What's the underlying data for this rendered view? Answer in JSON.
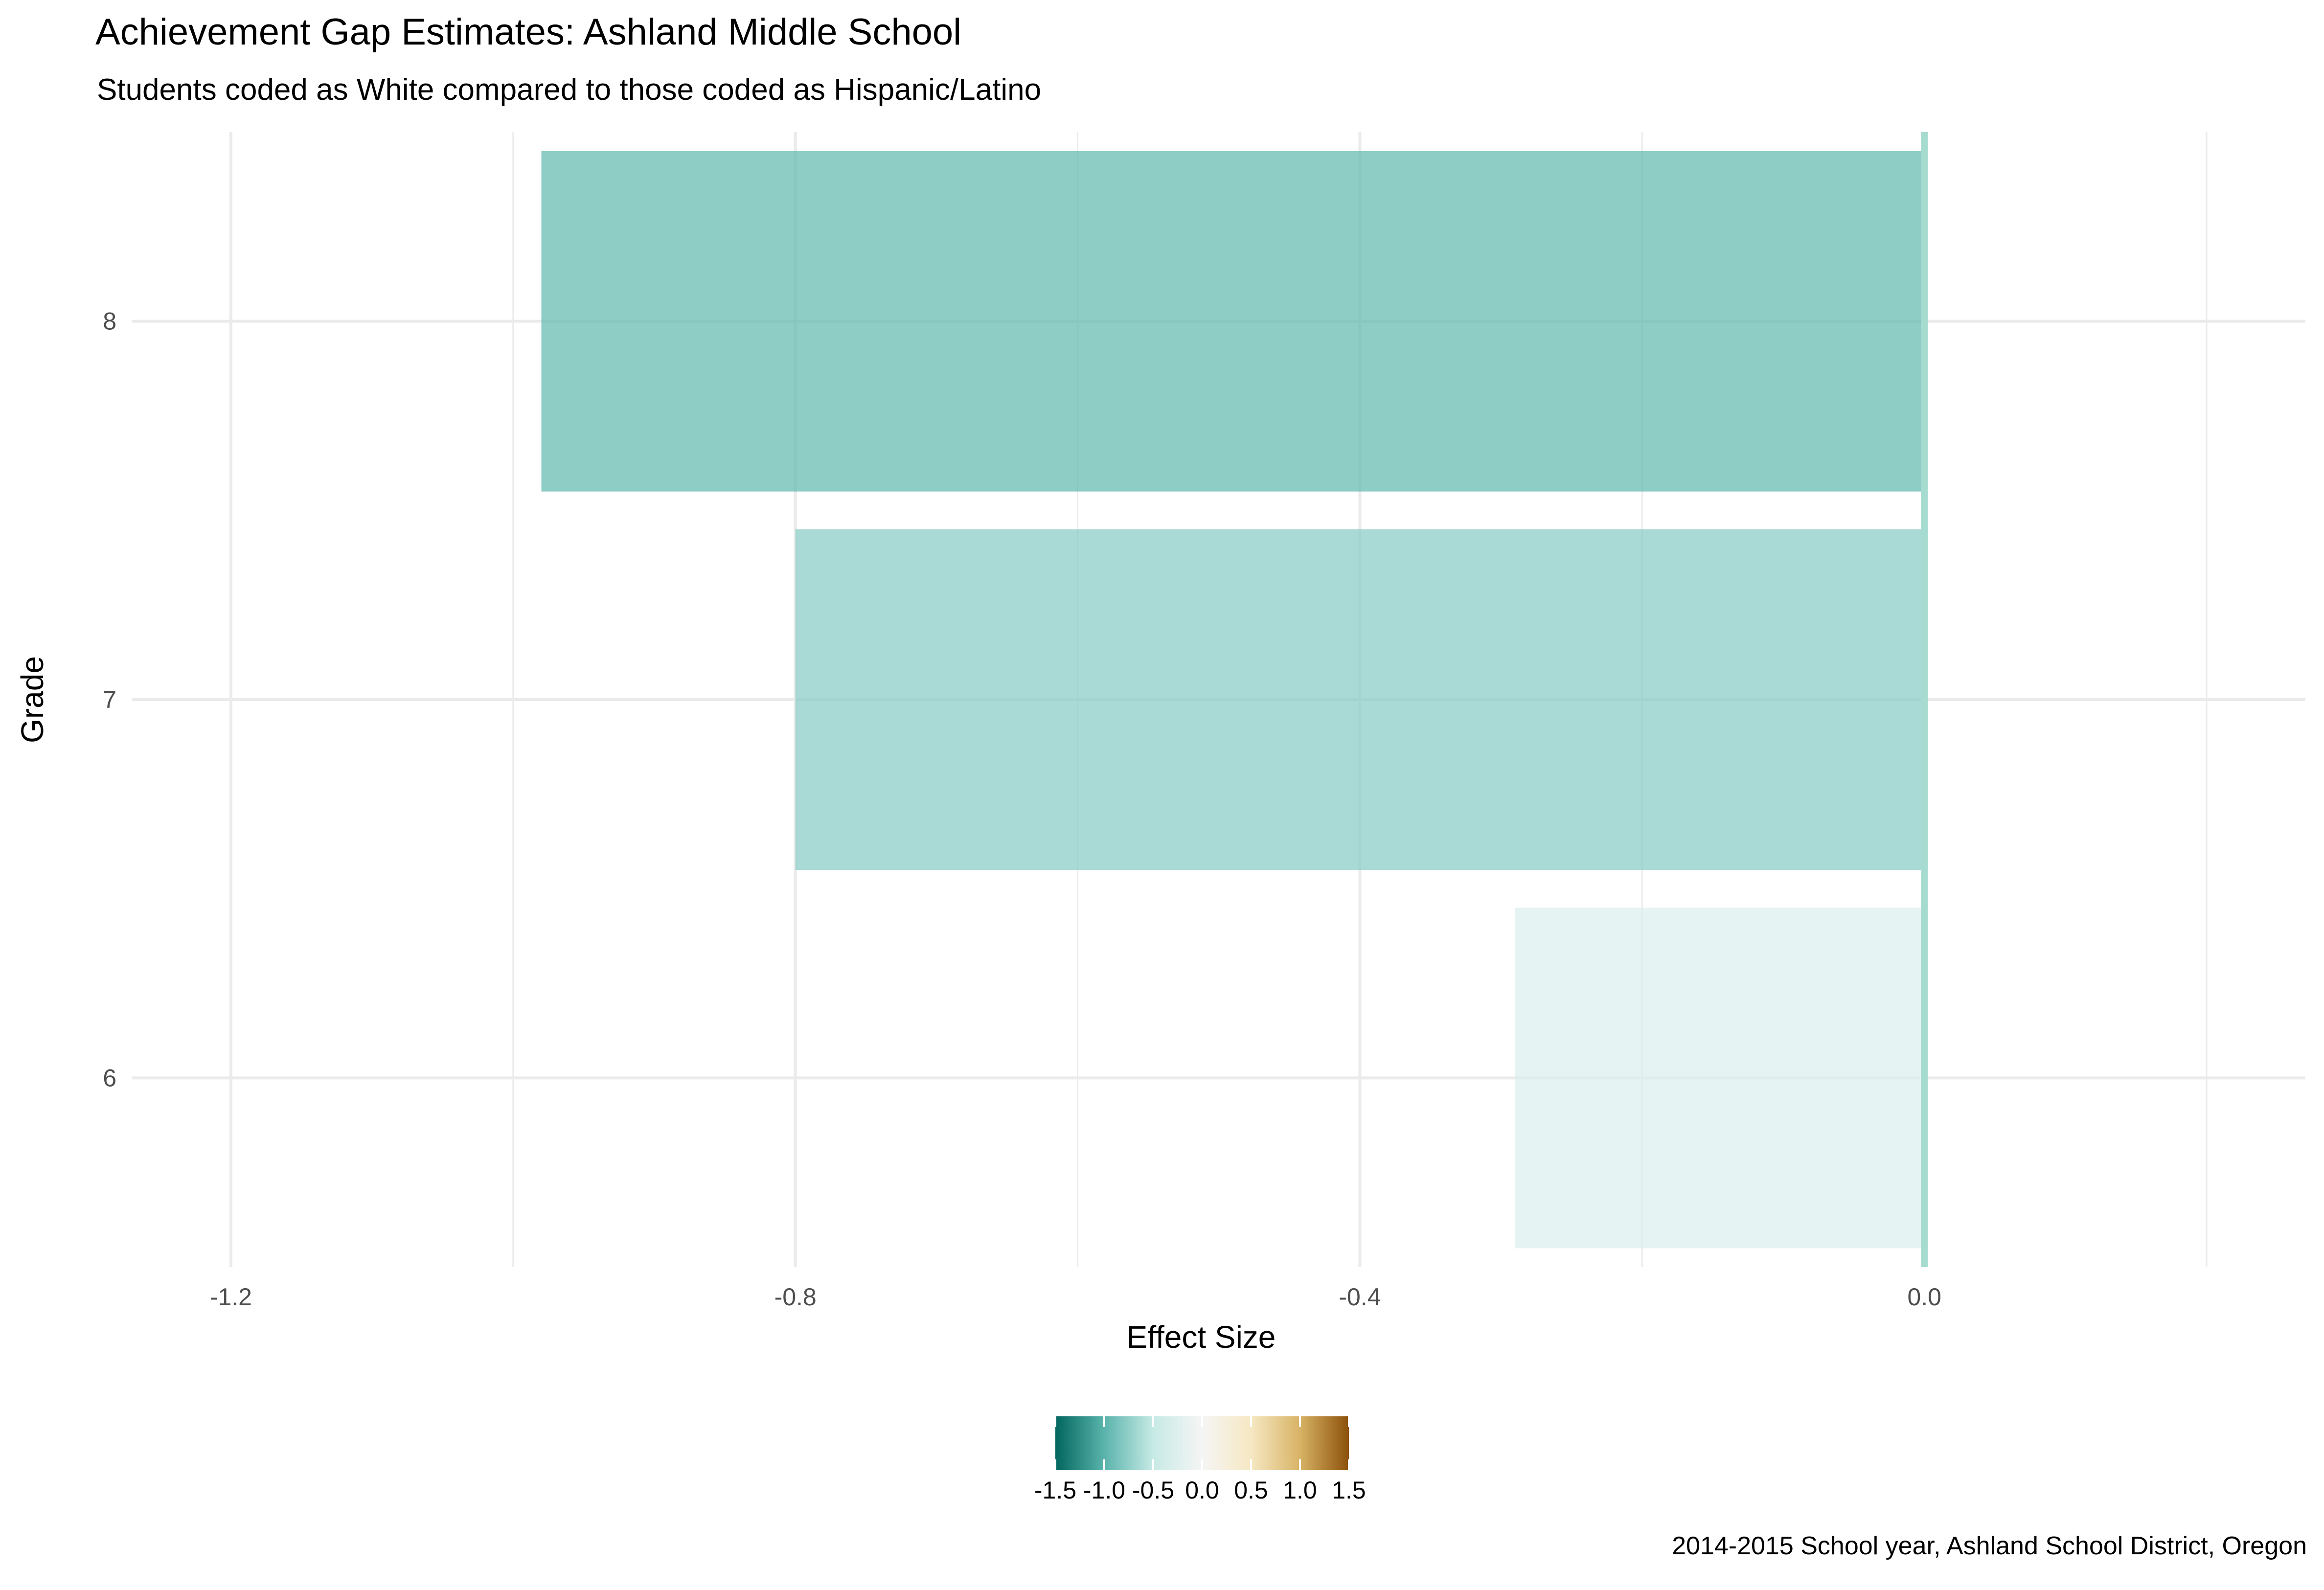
{
  "chart_data": {
    "type": "bar",
    "orientation": "horizontal",
    "title": "Achievement Gap Estimates: Ashland Middle School",
    "subtitle": "Students coded as White compared to those coded as Hispanic/Latino",
    "caption": "2014-2015 School year, Ashland School District, Oregon",
    "xlabel": "Effect Size",
    "ylabel": "Grade",
    "categories": [
      "6",
      "7",
      "8"
    ],
    "values": [
      -0.29,
      -0.8,
      -0.98
    ],
    "xlim": [
      -1.27,
      0.27
    ],
    "x_ticks": [
      -1.2,
      -0.8,
      -0.4,
      0.0
    ],
    "x_tick_labels": [
      "-1.2",
      "-0.8",
      "-0.4",
      "0.0"
    ],
    "reference_line": 0.0,
    "grid": true,
    "legend": {
      "type": "colorbar",
      "placement": "bottom",
      "range": [
        -1.5,
        1.5
      ],
      "ticks": [
        -1.5,
        -1.0,
        -0.5,
        0.0,
        0.5,
        1.0,
        1.5
      ],
      "tick_labels": [
        "-1.5",
        "-1.0",
        "-0.5",
        "0.0",
        "0.5",
        "1.0",
        "1.5"
      ],
      "colors": [
        "#01665e",
        "#5ab4ac",
        "#c7eae5",
        "#f5f5f5",
        "#f6e8c3",
        "#d8b365",
        "#8c510a"
      ]
    },
    "colors": {
      "reference_line": "#a6dbcf",
      "grid": "#ebebeb"
    }
  }
}
